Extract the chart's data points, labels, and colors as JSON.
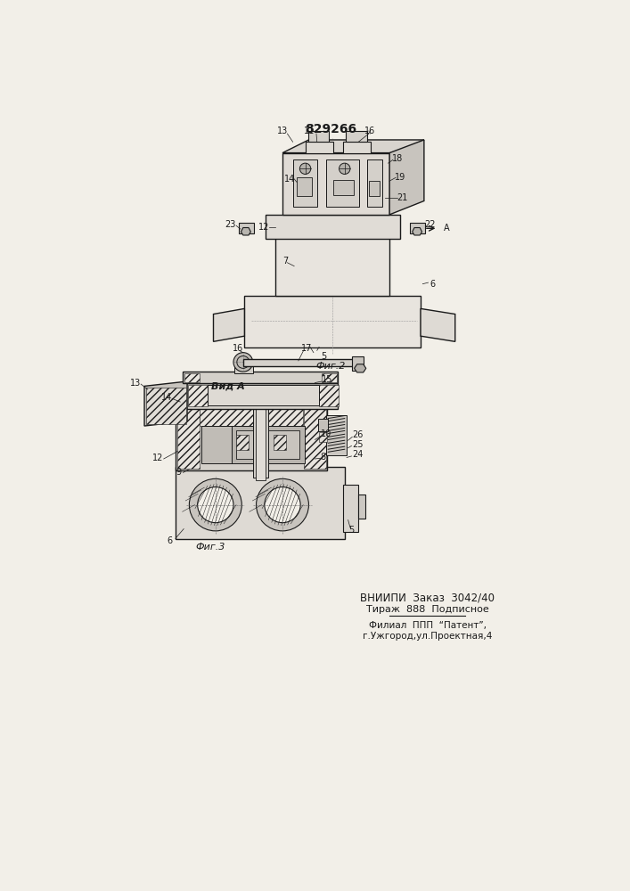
{
  "patent_number": "829266",
  "fig2_label": "Фиг.2",
  "fig3_label": "Фиг.3",
  "view_label": "Вид А",
  "bottom_text_line1": "ВНИИПИ  Заказ  3042/40",
  "bottom_text_line2": "Тираж  888  Подписное",
  "bottom_text_line3": "Филиал  ППП  “Патент”,",
  "bottom_text_line4": "г.Ужгород,ул.Проектная,4",
  "bg_color": "#f2efe8",
  "line_color": "#1a1a1a"
}
